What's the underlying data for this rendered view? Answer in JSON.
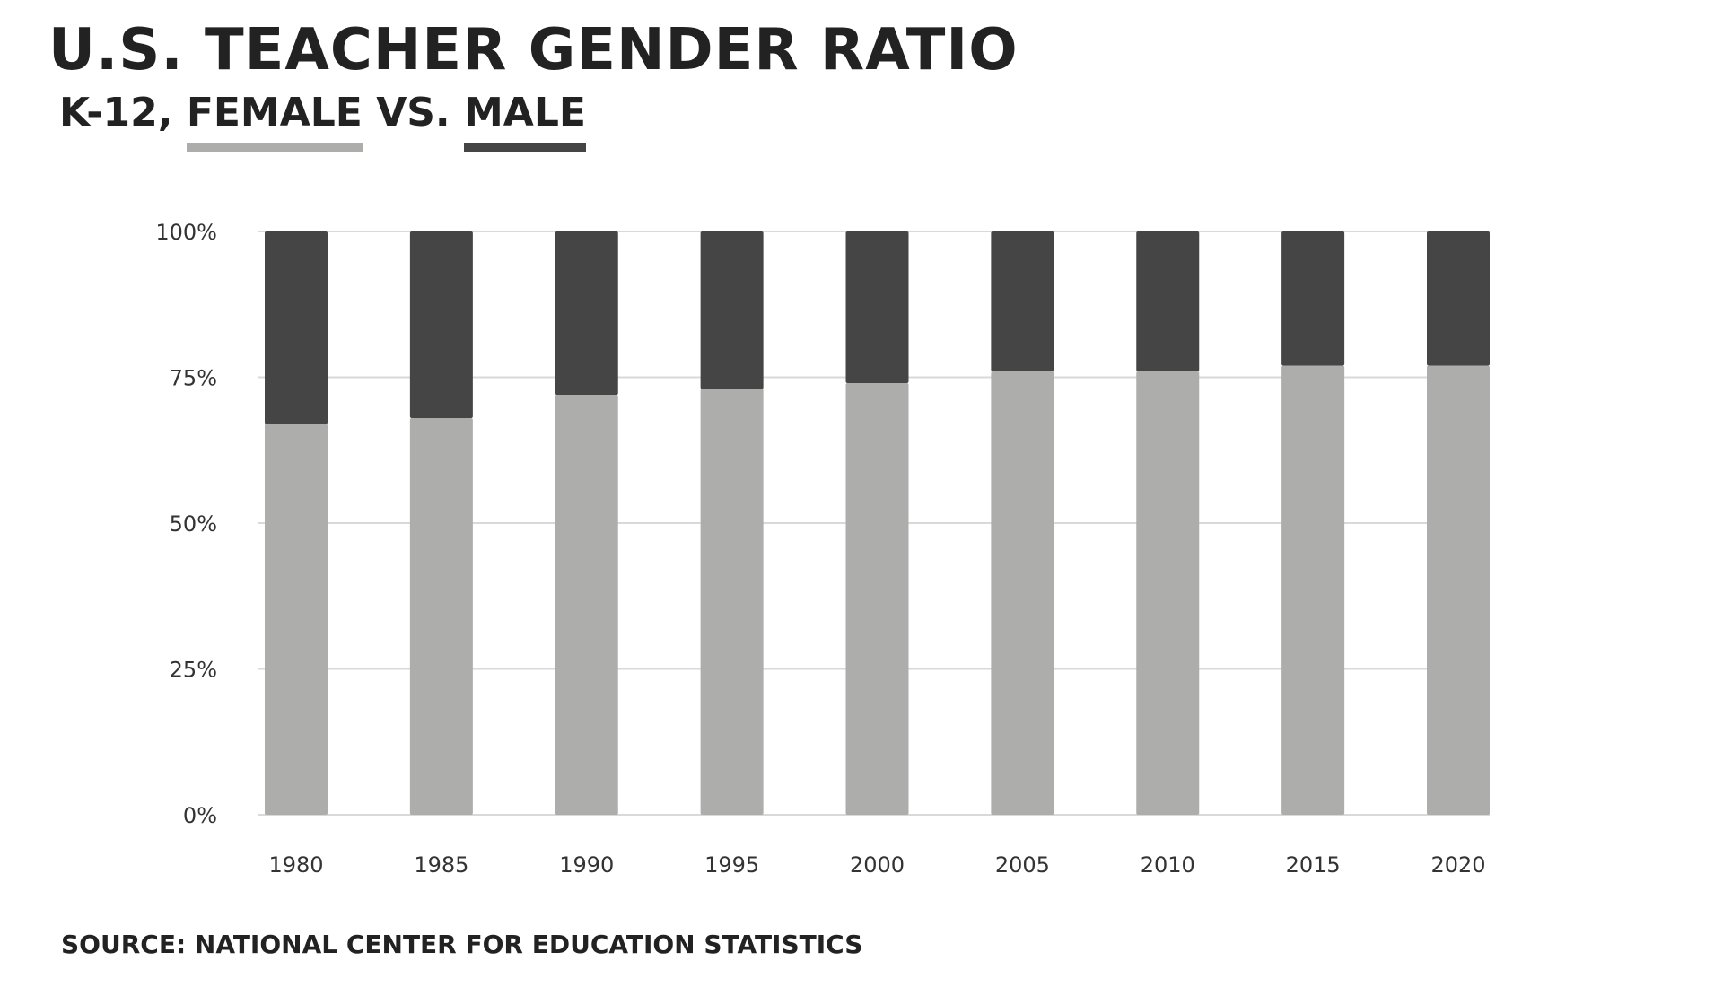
{
  "title": "U.S. TEACHER GENDER RATIO",
  "subtitle": {
    "prefix": "K-12,",
    "female_label": "FEMALE",
    "separator": "VS.",
    "male_label": "MALE"
  },
  "source": "SOURCE: NATIONAL CENTER FOR EDUCATION STATISTICS",
  "colors": {
    "female": "#adadac",
    "male": "#454545",
    "grid": "#d9d9d9",
    "text": "#222222"
  },
  "chart_data": {
    "type": "bar",
    "stacked": true,
    "categories": [
      "1980",
      "1985",
      "1990",
      "1995",
      "2000",
      "2005",
      "2010",
      "2015",
      "2020"
    ],
    "series": [
      {
        "name": "FEMALE",
        "values": [
          67,
          68,
          72,
          73,
          74,
          76,
          76,
          77,
          77
        ]
      },
      {
        "name": "MALE",
        "values": [
          33,
          32,
          28,
          27,
          26,
          24,
          24,
          23,
          23
        ]
      }
    ],
    "ylim": [
      0,
      100
    ],
    "yticks": [
      "0%",
      "25%",
      "50%",
      "75%",
      "100%"
    ],
    "grid": true,
    "legend": "subtitle"
  }
}
